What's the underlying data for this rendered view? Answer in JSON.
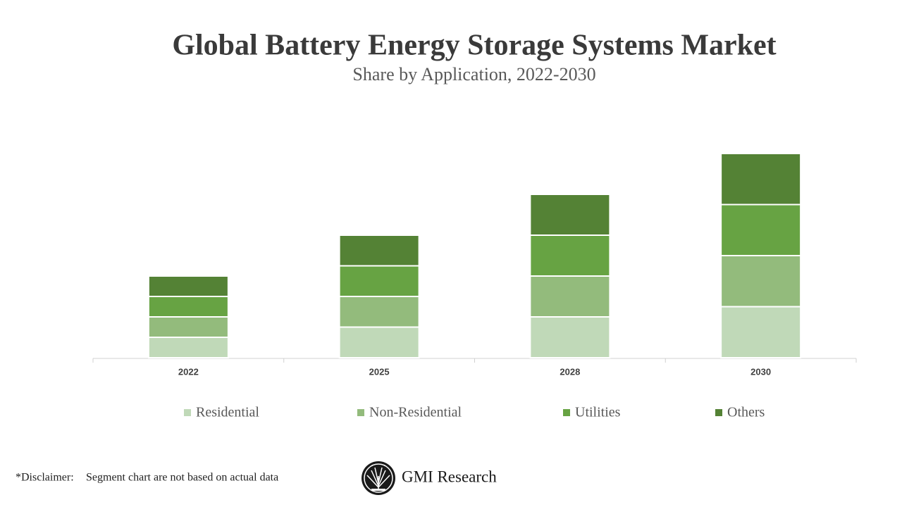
{
  "chart_data": {
    "type": "stacked_bar",
    "title": "Global Battery Energy Storage Systems Market",
    "subtitle": "Share by Application, 2022-2030",
    "categories": [
      "2022",
      "2025",
      "2028",
      "2030"
    ],
    "series": [
      {
        "name": "Residential",
        "color": "#c0d9b8",
        "values": [
          2,
          3,
          4,
          5
        ]
      },
      {
        "name": "Non-Residential",
        "color": "#93bb7c",
        "values": [
          2,
          3,
          4,
          5
        ]
      },
      {
        "name": "Utilities",
        "color": "#67a343",
        "values": [
          2,
          3,
          4,
          5
        ]
      },
      {
        "name": "Others",
        "color": "#548235",
        "values": [
          2,
          3,
          4,
          5
        ]
      }
    ],
    "ylim": [
      0,
      20
    ],
    "legend": "bottom"
  },
  "footer": {
    "disclaimer_label": "*Disclaimer:",
    "disclaimer": "Segment chart are not based on actual data",
    "brand": "GMI Research"
  }
}
